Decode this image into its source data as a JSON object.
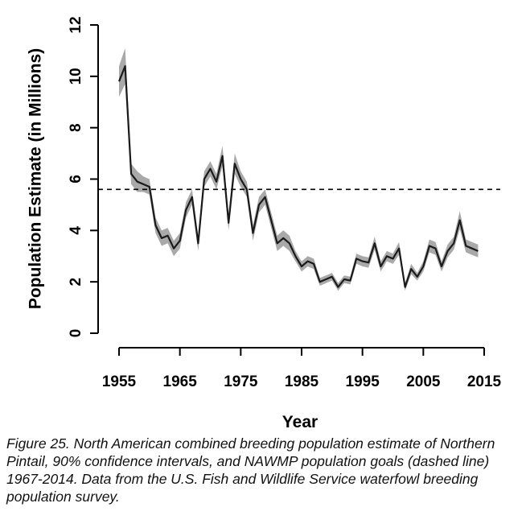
{
  "chart_data": {
    "type": "line",
    "xlabel": "Year",
    "ylabel": "Population Estimate (in Millions)",
    "xlim": [
      1955,
      2015
    ],
    "ylim": [
      0,
      12
    ],
    "x_ticks": [
      "1955",
      "1965",
      "1975",
      "1985",
      "1995",
      "2005",
      "2015"
    ],
    "y_ticks": [
      "0",
      "2",
      "4",
      "6",
      "8",
      "10",
      "12"
    ],
    "goal_line": 5.6,
    "band_color": "#a9a9a9",
    "line_color": "#1a1a1a",
    "series": [
      {
        "x": [
          1955,
          1956,
          1957,
          1958,
          1959,
          1960,
          1961,
          1962,
          1963,
          1964,
          1965,
          1966,
          1967,
          1968,
          1969,
          1970,
          1971,
          1972,
          1973,
          1974,
          1975,
          1976,
          1977,
          1978,
          1979,
          1980,
          1981,
          1982,
          1983,
          1984,
          1985,
          1986,
          1987,
          1988,
          1989,
          1990,
          1991,
          1992,
          1993,
          1994,
          1995,
          1996,
          1997,
          1998,
          1999,
          2000,
          2001,
          2002,
          2003,
          2004,
          2005,
          2006,
          2007,
          2008,
          2009,
          2010,
          2011,
          2012,
          2013,
          2014
        ],
        "y": [
          9.8,
          10.4,
          6.2,
          5.9,
          5.8,
          5.7,
          4.2,
          3.7,
          3.8,
          3.3,
          3.6,
          4.8,
          5.3,
          3.5,
          6.0,
          6.4,
          5.9,
          6.9,
          4.3,
          6.6,
          6.0,
          5.6,
          3.9,
          5.0,
          5.3,
          4.4,
          3.5,
          3.7,
          3.5,
          3.0,
          2.6,
          2.8,
          2.7,
          2.0,
          2.1,
          2.2,
          1.8,
          2.1,
          2.05,
          2.9,
          2.8,
          2.75,
          3.5,
          2.6,
          3.0,
          2.9,
          3.3,
          1.8,
          2.5,
          2.2,
          2.6,
          3.4,
          3.3,
          2.6,
          3.2,
          3.5,
          4.4,
          3.4,
          3.3,
          3.2
        ],
        "lower": [
          9.2,
          9.7,
          5.8,
          5.5,
          5.5,
          5.4,
          3.9,
          3.4,
          3.5,
          3.0,
          3.3,
          4.5,
          5.0,
          3.2,
          5.7,
          6.1,
          5.6,
          6.5,
          4.0,
          6.2,
          5.7,
          5.3,
          3.6,
          4.7,
          5.0,
          4.1,
          3.2,
          3.4,
          3.2,
          2.8,
          2.4,
          2.6,
          2.5,
          1.85,
          1.95,
          2.05,
          1.65,
          1.95,
          1.9,
          2.7,
          2.6,
          2.55,
          3.25,
          2.4,
          2.8,
          2.7,
          3.05,
          1.65,
          2.3,
          2.05,
          2.4,
          3.15,
          3.05,
          2.4,
          2.95,
          3.25,
          4.05,
          3.15,
          3.05,
          2.95
        ],
        "upper": [
          10.4,
          11.1,
          6.6,
          6.3,
          6.1,
          6.0,
          4.5,
          4.0,
          4.1,
          3.6,
          3.9,
          5.1,
          5.6,
          3.8,
          6.3,
          6.7,
          6.2,
          7.3,
          4.6,
          7.0,
          6.3,
          5.9,
          4.2,
          5.3,
          5.6,
          4.7,
          3.8,
          4.0,
          3.8,
          3.2,
          2.8,
          3.0,
          2.9,
          2.15,
          2.25,
          2.35,
          1.95,
          2.25,
          2.2,
          3.1,
          3.0,
          2.95,
          3.75,
          2.8,
          3.2,
          3.1,
          3.55,
          1.95,
          2.7,
          2.35,
          2.8,
          3.65,
          3.55,
          2.8,
          3.45,
          3.75,
          4.75,
          3.65,
          3.55,
          3.45
        ]
      }
    ]
  },
  "caption": "Figure 25. North American combined breeding population estimate of Northern Pintail, 90% confidence intervals, and NAWMP population goals (dashed line) 1967-2014. Data from the U.S. Fish and Wildlife Service waterfowl breeding population survey."
}
